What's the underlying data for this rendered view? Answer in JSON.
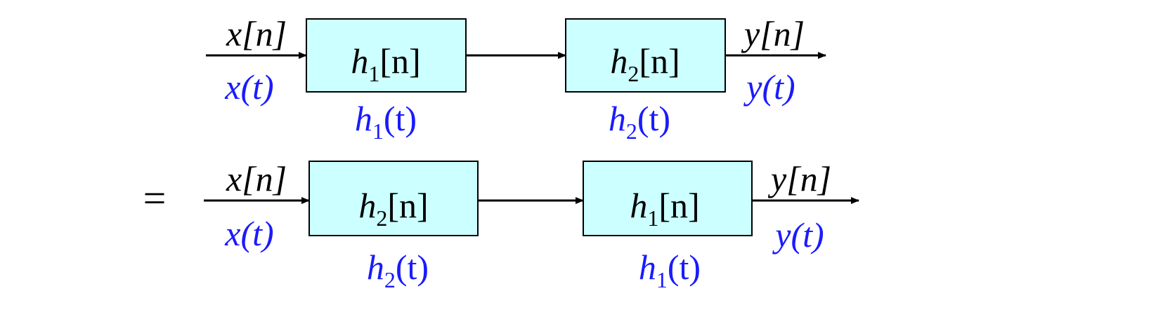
{
  "equals_sign": "=",
  "colors": {
    "block_fill": "#ccffff",
    "block_stroke": "#000000",
    "discrete_text": "#000000",
    "continuous_text": "#1a1aff",
    "arrow": "#000000"
  },
  "rows": [
    {
      "input": {
        "discrete": "x[n]",
        "continuous": "x(t)"
      },
      "output": {
        "discrete": "y[n]",
        "continuous": "y(t)"
      },
      "blocks": [
        {
          "discrete": {
            "base": "h",
            "sub": "1",
            "arg": "[n]"
          },
          "continuous": {
            "base": "h",
            "sub": "1",
            "arg": "(t)"
          }
        },
        {
          "discrete": {
            "base": "h",
            "sub": "2",
            "arg": "[n]"
          },
          "continuous": {
            "base": "h",
            "sub": "2",
            "arg": "(t)"
          }
        }
      ]
    },
    {
      "input": {
        "discrete": "x[n]",
        "continuous": "x(t)"
      },
      "output": {
        "discrete": "y[n]",
        "continuous": "y(t)"
      },
      "blocks": [
        {
          "discrete": {
            "base": "h",
            "sub": "2",
            "arg": "[n]"
          },
          "continuous": {
            "base": "h",
            "sub": "2",
            "arg": "(t)"
          }
        },
        {
          "discrete": {
            "base": "h",
            "sub": "1",
            "arg": "[n]"
          },
          "continuous": {
            "base": "h",
            "sub": "1",
            "arg": "(t)"
          }
        }
      ]
    }
  ]
}
